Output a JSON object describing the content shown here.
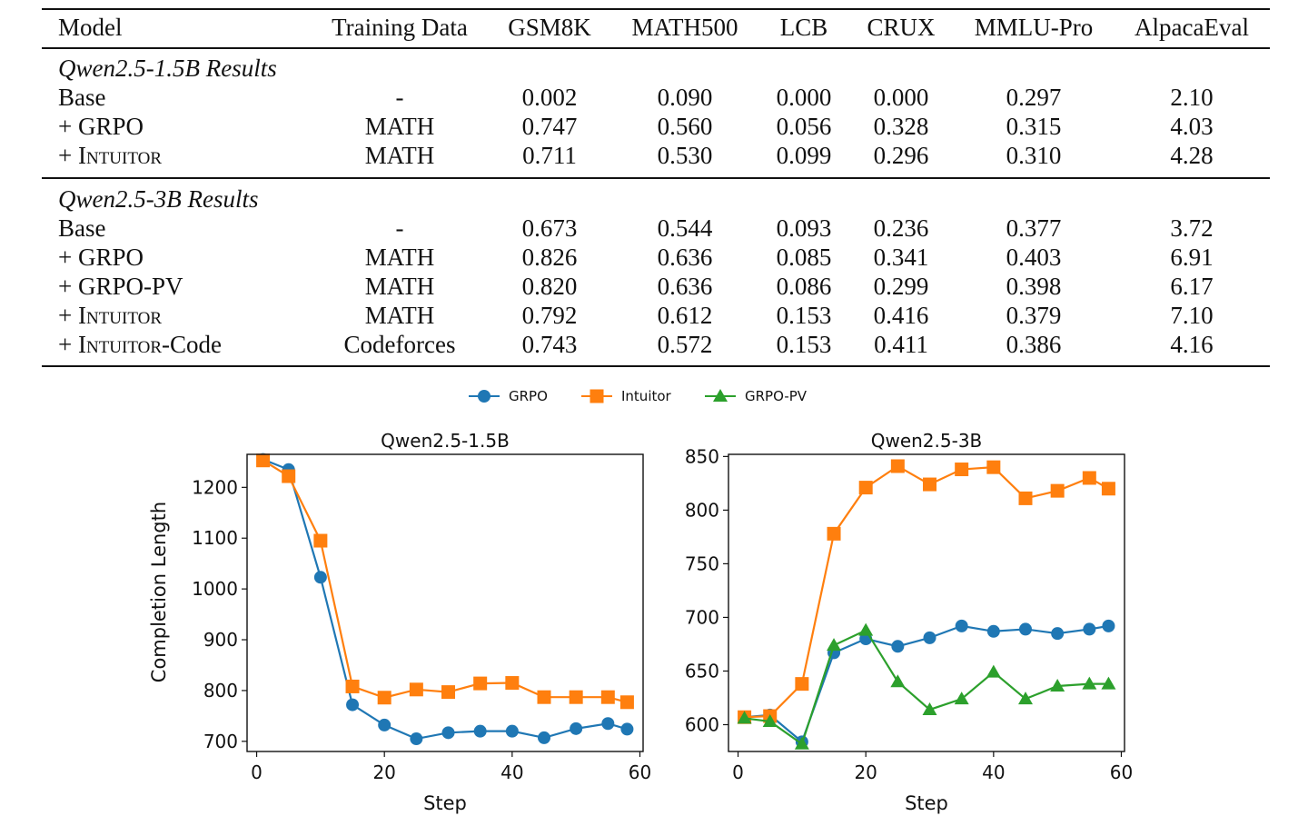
{
  "table": {
    "headers": [
      "Model",
      "Training Data",
      "GSM8K",
      "MATH500",
      "LCB",
      "CRUX",
      "MMLU-Pro",
      "AlpacaEval"
    ],
    "sections": [
      {
        "title": "Qwen2.5-1.5B Results",
        "rows": [
          {
            "model_prefix": "Base",
            "model_sc": "",
            "model_suffix": "",
            "training": "-",
            "gsm8k": "0.002",
            "math500": "0.090",
            "lcb": "0.000",
            "crux": "0.000",
            "mmlu_pro": "0.297",
            "alpaca": "2.10"
          },
          {
            "model_prefix": "+ GRPO",
            "model_sc": "",
            "model_suffix": "",
            "training": "MATH",
            "gsm8k": "0.747",
            "math500": "0.560",
            "lcb": "0.056",
            "crux": "0.328",
            "mmlu_pro": "0.315",
            "alpaca": "4.03"
          },
          {
            "model_prefix": "+ ",
            "model_sc": "Intuitor",
            "model_suffix": "",
            "training": "MATH",
            "gsm8k": "0.711",
            "math500": "0.530",
            "lcb": "0.099",
            "crux": "0.296",
            "mmlu_pro": "0.310",
            "alpaca": "4.28"
          }
        ]
      },
      {
        "title": "Qwen2.5-3B Results",
        "rows": [
          {
            "model_prefix": "Base",
            "model_sc": "",
            "model_suffix": "",
            "training": "-",
            "gsm8k": "0.673",
            "math500": "0.544",
            "lcb": "0.093",
            "crux": "0.236",
            "mmlu_pro": "0.377",
            "alpaca": "3.72"
          },
          {
            "model_prefix": "+ GRPO",
            "model_sc": "",
            "model_suffix": "",
            "training": "MATH",
            "gsm8k": "0.826",
            "math500": "0.636",
            "lcb": "0.085",
            "crux": "0.341",
            "mmlu_pro": "0.403",
            "alpaca": "6.91"
          },
          {
            "model_prefix": "+ GRPO-PV",
            "model_sc": "",
            "model_suffix": "",
            "training": "MATH",
            "gsm8k": "0.820",
            "math500": "0.636",
            "lcb": "0.086",
            "crux": "0.299",
            "mmlu_pro": "0.398",
            "alpaca": "6.17"
          },
          {
            "model_prefix": "+ ",
            "model_sc": "Intuitor",
            "model_suffix": "",
            "training": "MATH",
            "gsm8k": "0.792",
            "math500": "0.612",
            "lcb": "0.153",
            "crux": "0.416",
            "mmlu_pro": "0.379",
            "alpaca": "7.10"
          },
          {
            "model_prefix": "+ ",
            "model_sc": "Intuitor",
            "model_suffix": "-Code",
            "training": "Codeforces",
            "gsm8k": "0.743",
            "math500": "0.572",
            "lcb": "0.153",
            "crux": "0.411",
            "mmlu_pro": "0.386",
            "alpaca": "4.16"
          }
        ]
      }
    ]
  },
  "legend": [
    {
      "name": "GRPO",
      "color": "#1f77b4",
      "marker": "circle"
    },
    {
      "name": "Intuitor",
      "color": "#ff7f0e",
      "marker": "square"
    },
    {
      "name": "GRPO-PV",
      "color": "#2ca02c",
      "marker": "triangle"
    }
  ],
  "chart_data": [
    {
      "type": "line",
      "title": "Qwen2.5-1.5B",
      "xlabel": "Step",
      "ylabel": "Completion Length",
      "xlim": [
        -1.5,
        60.5
      ],
      "ylim": [
        680,
        1265
      ],
      "xticks": [
        0,
        20,
        40,
        60
      ],
      "yticks": [
        700,
        800,
        900,
        1000,
        1100,
        1200
      ],
      "series": [
        {
          "name": "GRPO",
          "color": "#1f77b4",
          "marker": "circle",
          "x": [
            1,
            5,
            10,
            15,
            20,
            25,
            30,
            35,
            40,
            45,
            50,
            55,
            58
          ],
          "values": [
            1255,
            1235,
            1023,
            772,
            732,
            705,
            717,
            720,
            720,
            707,
            725,
            735,
            724
          ]
        },
        {
          "name": "Intuitor",
          "color": "#ff7f0e",
          "marker": "square",
          "x": [
            1,
            5,
            10,
            15,
            20,
            25,
            30,
            35,
            40,
            45,
            50,
            55,
            58
          ],
          "values": [
            1253,
            1222,
            1095,
            808,
            786,
            802,
            797,
            814,
            815,
            787,
            787,
            787,
            777
          ]
        }
      ]
    },
    {
      "type": "line",
      "title": "Qwen2.5-3B",
      "xlabel": "Step",
      "ylabel": "",
      "xlim": [
        -1.5,
        60.5
      ],
      "ylim": [
        575,
        852
      ],
      "xticks": [
        0,
        20,
        40,
        60
      ],
      "yticks": [
        600,
        650,
        700,
        750,
        800,
        850
      ],
      "series": [
        {
          "name": "GRPO",
          "color": "#1f77b4",
          "marker": "circle",
          "x": [
            1,
            5,
            10,
            15,
            20,
            25,
            30,
            35,
            40,
            45,
            50,
            55,
            58
          ],
          "values": [
            607,
            609,
            584,
            667,
            680,
            673,
            681,
            692,
            687,
            689,
            685,
            689,
            692
          ]
        },
        {
          "name": "Intuitor",
          "color": "#ff7f0e",
          "marker": "square",
          "x": [
            1,
            5,
            10,
            15,
            20,
            25,
            30,
            35,
            40,
            45,
            50,
            55,
            58
          ],
          "values": [
            607,
            608,
            638,
            778,
            821,
            841,
            824,
            838,
            840,
            811,
            818,
            830,
            820
          ]
        },
        {
          "name": "GRPO-PV",
          "color": "#2ca02c",
          "marker": "triangle",
          "x": [
            1,
            5,
            10,
            15,
            20,
            25,
            30,
            35,
            40,
            45,
            50,
            55,
            58
          ],
          "values": [
            606,
            603,
            582,
            674,
            688,
            640,
            614,
            624,
            649,
            624,
            636,
            638,
            638
          ]
        }
      ]
    }
  ]
}
